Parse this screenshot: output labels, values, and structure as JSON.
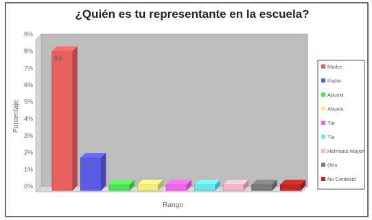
{
  "chart_data": {
    "type": "bar",
    "title": "¿Quién es tu representante en la escuela?",
    "xlabel": "Rango",
    "ylabel": "Porcentaje",
    "ylim": [
      0,
      9
    ],
    "y_ticks": [
      "0%",
      "1%",
      "2%",
      "3%",
      "4%",
      "5%",
      "6%",
      "7%",
      "8%",
      "9%"
    ],
    "grid": false,
    "legend_position": "right",
    "series": [
      {
        "name": "Madre",
        "value": 8,
        "label": "8%",
        "color": "#e8605e"
      },
      {
        "name": "Padre",
        "value": 1.7,
        "label": "2%",
        "color": "#5a5ce6"
      },
      {
        "name": "Abuelo",
        "value": 0.1,
        "label": "",
        "color": "#4fe05a"
      },
      {
        "name": "Abuela",
        "value": 0.1,
        "label": "",
        "color": "#f2ef7a"
      },
      {
        "name": "Tío",
        "value": 0.1,
        "label": "",
        "color": "#ee66ee"
      },
      {
        "name": "Tía",
        "value": 0.1,
        "label": "",
        "color": "#66e8ee"
      },
      {
        "name": "Hermano Mayor",
        "value": 0.1,
        "label": "",
        "color": "#f2b6c4"
      },
      {
        "name": "Otro",
        "value": 0.1,
        "label": "",
        "color": "#7a7a7a"
      },
      {
        "name": "No Contestó",
        "value": 0.1,
        "label": "",
        "color": "#c02525"
      }
    ]
  }
}
